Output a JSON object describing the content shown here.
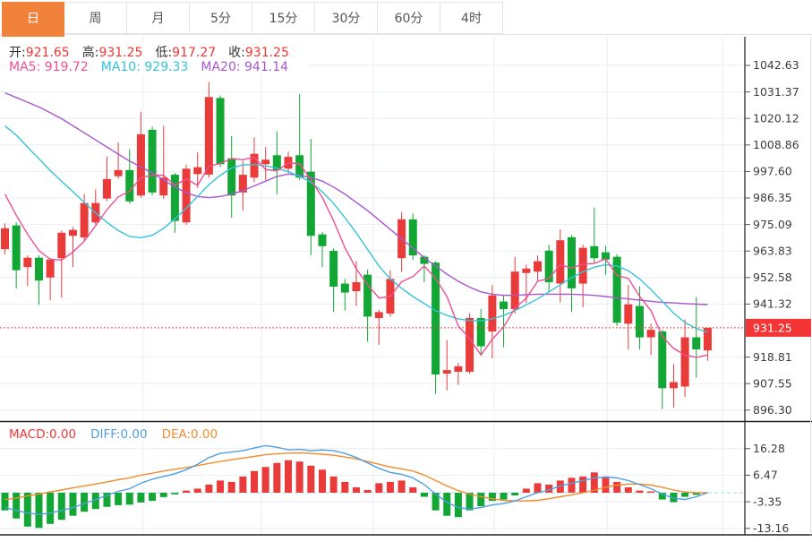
{
  "tabbar": {
    "tabs": [
      {
        "label": "日",
        "active": true
      },
      {
        "label": "周",
        "active": false
      },
      {
        "label": "月",
        "active": false
      },
      {
        "label": "5分",
        "active": false
      },
      {
        "label": "15分",
        "active": false
      },
      {
        "label": "30分",
        "active": false
      },
      {
        "label": "60分",
        "active": false
      },
      {
        "label": "4时",
        "active": false
      }
    ]
  },
  "info": {
    "ohlc": [
      {
        "label": "开:",
        "value": "921.65"
      },
      {
        "label": "高:",
        "value": "931.25"
      },
      {
        "label": "低:",
        "value": "917.27"
      },
      {
        "label": "收:",
        "value": "931.25"
      }
    ],
    "ma": [
      {
        "label": "MA5:",
        "value": "919.72",
        "color": "#ef4f92"
      },
      {
        "label": "MA10:",
        "value": "929.33",
        "color": "#33c4da"
      },
      {
        "label": "MA20:",
        "value": "941.14",
        "color": "#a757cc"
      }
    ]
  },
  "macd_header": [
    {
      "label": "MACD:",
      "value": "0.00",
      "color": "#f23535"
    },
    {
      "label": "DIFF:",
      "value": "0.00",
      "color": "#4e9ee0"
    },
    {
      "label": "DEA:",
      "value": "0.00",
      "color": "#f08c2e"
    }
  ],
  "price_axis": {
    "labels": [
      "1042.63",
      "1031.37",
      "1020.12",
      "1008.86",
      "997.60",
      "986.35",
      "975.09",
      "963.83",
      "952.58",
      "941.32",
      "918.81",
      "907.55",
      "896.30"
    ],
    "current_label": "931.25",
    "current_value": 931.25
  },
  "macd_axis": {
    "labels": [
      "16.28",
      "6.47",
      "-3.35",
      "-13.16"
    ]
  },
  "colors": {
    "up": "#ea3b3b",
    "down": "#12a634",
    "ma5": "#ef4f92",
    "ma10": "#33c4da",
    "ma20": "#a757cc",
    "diff": "#4e9ee0",
    "dea": "#f08c2e",
    "tab_accent": "#f0823c",
    "badge": "#f43535",
    "grid": "#e9eef6",
    "axis_border": "#3a3a3a",
    "current_line": "#f54545",
    "zero_line": "#a8d8ea",
    "tick_text": "#3c3c3c"
  },
  "chart_data": {
    "type": "candlestick",
    "panels": [
      "price",
      "macd"
    ],
    "title": "",
    "ylabel": "",
    "price_axis_top": 1042.63,
    "price_axis_bottom": 896.3,
    "price_tick_step": 11.255,
    "current_price": 931.25,
    "candles": [
      [
        964.6,
        975.5,
        962.5,
        973.5
      ],
      [
        974.7,
        976.0,
        948.0,
        955.7
      ],
      [
        957.0,
        962.0,
        949.0,
        961.0
      ],
      [
        961.0,
        962.0,
        941.0,
        951.3
      ],
      [
        952.6,
        961.0,
        943.0,
        960.2
      ],
      [
        960.8,
        972.5,
        944.0,
        971.6
      ],
      [
        970.3,
        974.0,
        957.0,
        972.8
      ],
      [
        969.6,
        988.0,
        968.0,
        984.2
      ],
      [
        976.0,
        990.0,
        975.0,
        984.2
      ],
      [
        986.1,
        1004.0,
        985.0,
        994.4
      ],
      [
        995.6,
        1010.0,
        994.5,
        998.2
      ],
      [
        998.2,
        1007.0,
        984.0,
        984.9
      ],
      [
        987.4,
        1023.0,
        986.5,
        1013.4
      ],
      [
        1015.3,
        1016.6,
        987.5,
        988.7
      ],
      [
        987.4,
        1017.0,
        986.0,
        995.0
      ],
      [
        996.2,
        997.0,
        971.6,
        976.6
      ],
      [
        976.0,
        1000.5,
        975.0,
        998.8
      ],
      [
        996.5,
        1005.8,
        990.6,
        999.4
      ],
      [
        996.3,
        1035.5,
        995.0,
        1029.2
      ],
      [
        1028.8,
        1029.8,
        999.5,
        1000.7
      ],
      [
        1003.2,
        1012.7,
        978.0,
        987.4
      ],
      [
        988.7,
        1002.0,
        981.0,
        996.2
      ],
      [
        995.0,
        1012.1,
        993.0,
        1005.1
      ],
      [
        1000.7,
        1008.0,
        994.0,
        1002.6
      ],
      [
        1004.5,
        1014.6,
        988.0,
        998.2
      ],
      [
        998.8,
        1006.0,
        997.0,
        1003.8
      ],
      [
        1004.5,
        1030.5,
        994.0,
        995.0
      ],
      [
        997.5,
        1011.4,
        962.1,
        970.3
      ],
      [
        970.9,
        972.0,
        957.0,
        965.9
      ],
      [
        963.9,
        965.0,
        938.0,
        948.7
      ],
      [
        950.0,
        952.0,
        938.6,
        946.2
      ],
      [
        946.8,
        959.5,
        940.5,
        950.6
      ],
      [
        953.8,
        956.0,
        925.3,
        936.0
      ],
      [
        935.4,
        939.0,
        924.0,
        937.9
      ],
      [
        937.3,
        955.7,
        936.0,
        952.0
      ],
      [
        960.8,
        980.4,
        955.0,
        977.3
      ],
      [
        977.3,
        979.8,
        960.0,
        962.0
      ],
      [
        961.4,
        962.0,
        950.6,
        958.4
      ],
      [
        958.9,
        959.5,
        903.2,
        911.4
      ],
      [
        911.8,
        926.0,
        904.7,
        913.3
      ],
      [
        912.6,
        916.4,
        907.0,
        914.9
      ],
      [
        912.6,
        937.4,
        911.7,
        935.4
      ],
      [
        935.4,
        939.2,
        919.6,
        923.4
      ],
      [
        929.7,
        949.4,
        918.3,
        945.0
      ],
      [
        942.4,
        945.0,
        923.0,
        939.2
      ],
      [
        939.2,
        961.4,
        937.3,
        955.1
      ],
      [
        954.5,
        958.0,
        941.8,
        956.4
      ],
      [
        955.1,
        962.0,
        951.0,
        959.5
      ],
      [
        964.0,
        966.5,
        946.2,
        950.6
      ],
      [
        950.0,
        973.0,
        942.0,
        968.4
      ],
      [
        969.7,
        970.5,
        938.0,
        948.0
      ],
      [
        950.0,
        966.5,
        940.0,
        965.2
      ],
      [
        965.9,
        982.3,
        959.0,
        960.8
      ],
      [
        963.3,
        966.0,
        953.8,
        960.2
      ],
      [
        961.4,
        962.5,
        932.0,
        933.4
      ],
      [
        933.0,
        949.4,
        922.1,
        941.2
      ],
      [
        940.5,
        948.7,
        922.0,
        927.2
      ],
      [
        927.2,
        933.0,
        919.6,
        930.4
      ],
      [
        929.7,
        930.5,
        896.8,
        905.6
      ],
      [
        905.6,
        915.8,
        897.4,
        908.2
      ],
      [
        906.3,
        934.8,
        901.9,
        927.2
      ],
      [
        927.2,
        944.3,
        910.1,
        922.1
      ],
      [
        921.65,
        931.25,
        917.27,
        931.25
      ]
    ],
    "ma5": [
      988,
      979,
      971,
      964,
      960.3,
      960.0,
      963.4,
      968.0,
      974.6,
      981.4,
      986.8,
      989.2,
      995.0,
      996.1,
      996.0,
      991.7,
      994.5,
      991.7,
      999.8,
      1001.0,
      1003.1,
      1002.6,
      1003.7,
      998.4,
      997.9,
      1001.2,
      1000.9,
      994.0,
      986.6,
      976.7,
      965.2,
      956.3,
      949.5,
      943.9,
      944.5,
      950.8,
      953.0,
      957.5,
      952.2,
      944.5,
      932.0,
      926.7,
      919.7,
      926.4,
      931.6,
      939.6,
      943.8,
      951.0,
      952.2,
      958.0,
      956.6,
      958.3,
      958.6,
      960.5,
      953.5,
      952.2,
      944.6,
      938.5,
      927.6,
      922.5,
      919.7,
      918.7,
      919.7
    ],
    "ma10": [
      1017,
      1013,
      1008,
      1003,
      998,
      993.5,
      989,
      984.5,
      980,
      976,
      972.5,
      970,
      969.5,
      970.5,
      973.5,
      977.5,
      982,
      987,
      992,
      996,
      999,
      1000.5,
      1000.5,
      1000,
      999,
      997.5,
      995.5,
      993,
      989,
      984,
      978,
      971.5,
      964.5,
      957.5,
      952,
      948,
      944.5,
      941.5,
      938.5,
      936.5,
      935,
      934.3,
      934.2,
      935,
      936.5,
      938.5,
      941,
      943.5,
      946.5,
      949.5,
      952.5,
      955,
      957,
      958,
      957.5,
      955.5,
      952,
      947.5,
      942.5,
      937.5,
      933.5,
      931,
      929.3
    ],
    "ma20": [
      1031,
      1029,
      1027,
      1025,
      1022.5,
      1020,
      1017,
      1014,
      1011,
      1008,
      1005,
      1002,
      999.5,
      997,
      994,
      991,
      988.5,
      987,
      986.5,
      987,
      988,
      989.5,
      991.5,
      993.5,
      995.5,
      996.5,
      996,
      995,
      993.5,
      991,
      988,
      984.5,
      981,
      977,
      973,
      969,
      965,
      961,
      957.5,
      954,
      951,
      948.5,
      946.5,
      945.5,
      945,
      945,
      945.3,
      945.5,
      945.5,
      945.5,
      945.5,
      945.3,
      945,
      944.5,
      944,
      943.5,
      943,
      942.5,
      942,
      941.8,
      941.5,
      941.3,
      941.1
    ],
    "macd": {
      "hist": [
        -6.5,
        -9.5,
        -12.5,
        -13.0,
        -11.5,
        -10.0,
        -8.5,
        -7.0,
        -6.0,
        -5.2,
        -4.6,
        -4.4,
        -3.6,
        -3.0,
        -1.6,
        -0.6,
        0.8,
        1.5,
        3.0,
        4.5,
        4.0,
        6.0,
        8.0,
        9.5,
        11.0,
        12.0,
        11.5,
        10.0,
        8.5,
        6.0,
        4.0,
        2.0,
        1.0,
        3.5,
        4.0,
        4.5,
        2.0,
        -1.5,
        -6.5,
        -8.5,
        -9.0,
        -6.5,
        -5.0,
        -3.0,
        -2.5,
        -1.0,
        1.5,
        3.5,
        3.0,
        4.5,
        5.5,
        6.0,
        7.5,
        6.0,
        4.0,
        2.0,
        0.8,
        0.5,
        -2.5,
        -3.5,
        -1.5,
        -0.8,
        0.0
      ],
      "diff": [
        -5.5,
        -6.5,
        -7.5,
        -8.0,
        -7.5,
        -6.5,
        -5.5,
        -4.0,
        -2.5,
        -1.0,
        0.5,
        1.5,
        3.5,
        5.0,
        6.0,
        7.0,
        8.5,
        10.5,
        13.0,
        14.5,
        15.0,
        15.5,
        16.5,
        17.4,
        16.8,
        15.8,
        16.0,
        15.5,
        15.8,
        15.5,
        14.5,
        13.0,
        11.0,
        9.0,
        7.5,
        6.8,
        5.5,
        3.0,
        -0.5,
        -3.5,
        -5.5,
        -6.0,
        -5.5,
        -4.5,
        -4.0,
        -3.0,
        -1.5,
        0.0,
        1.0,
        2.5,
        3.5,
        4.5,
        5.5,
        5.8,
        5.5,
        4.5,
        3.0,
        1.5,
        -0.5,
        -2.0,
        -2.5,
        -1.5,
        0.0
      ],
      "dea": [
        -2.5,
        -2.0,
        -1.2,
        -0.5,
        0.3,
        1.0,
        1.8,
        2.5,
        3.2,
        4.0,
        4.8,
        5.5,
        6.5,
        7.2,
        8.0,
        8.7,
        9.3,
        10.0,
        10.8,
        11.5,
        12.2,
        12.8,
        13.4,
        14.0,
        14.4,
        14.6,
        14.7,
        14.5,
        14.2,
        13.8,
        13.2,
        12.5,
        11.5,
        10.5,
        9.5,
        8.8,
        8.0,
        6.5,
        4.5,
        2.5,
        0.8,
        -0.5,
        -1.5,
        -2.2,
        -2.8,
        -3.0,
        -3.0,
        -2.8,
        -2.2,
        -1.5,
        -0.8,
        0.0,
        1.0,
        2.0,
        2.8,
        3.2,
        3.2,
        2.8,
        2.0,
        1.0,
        0.3,
        0.0,
        0.0
      ],
      "tick_values": [
        16.28,
        6.47,
        -3.35,
        -13.16
      ]
    }
  }
}
